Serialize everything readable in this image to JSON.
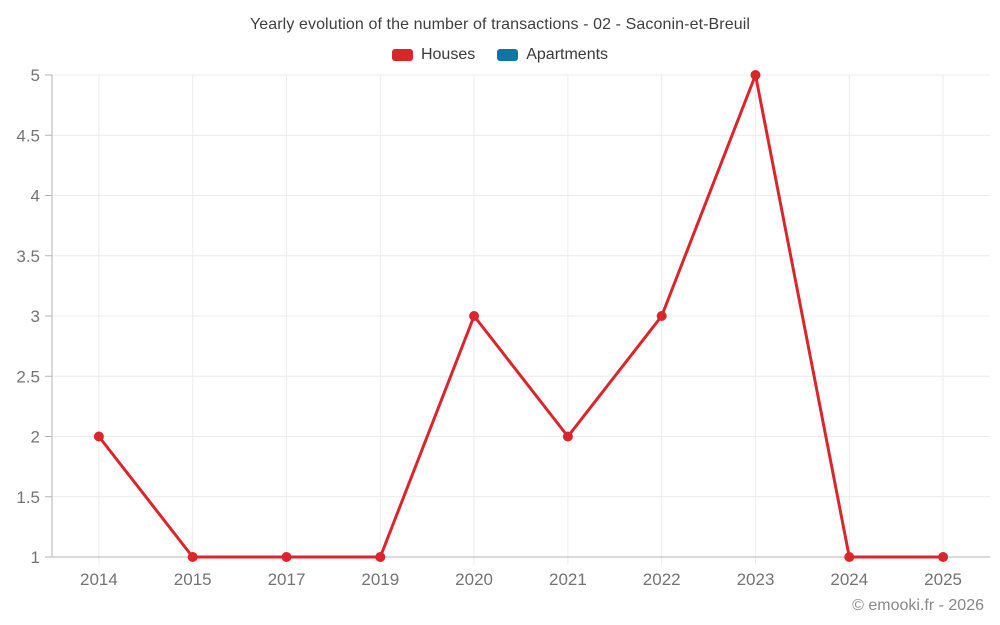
{
  "chart_data": {
    "type": "line",
    "title": "Yearly evolution of the number of transactions - 02 - Saconin-et-Breuil",
    "categories": [
      "2014",
      "2015",
      "2017",
      "2019",
      "2020",
      "2021",
      "2022",
      "2023",
      "2024",
      "2025"
    ],
    "series": [
      {
        "name": "Houses",
        "color": "#d9262c",
        "values": [
          2,
          1,
          1,
          1,
          3,
          2,
          3,
          5,
          1,
          1
        ]
      },
      {
        "name": "Apartments",
        "color": "#1373a3",
        "values": []
      }
    ],
    "xlabel": "",
    "ylabel": "",
    "ylim": [
      1,
      5
    ],
    "ytick_step": 0.5,
    "yticks": [
      "1",
      "1.5",
      "2",
      "2.5",
      "3",
      "3.5",
      "4",
      "4.5",
      "5"
    ],
    "grid": true,
    "legend_position": "top",
    "marker": "circle"
  },
  "watermark": "© emooki.fr - 2026"
}
